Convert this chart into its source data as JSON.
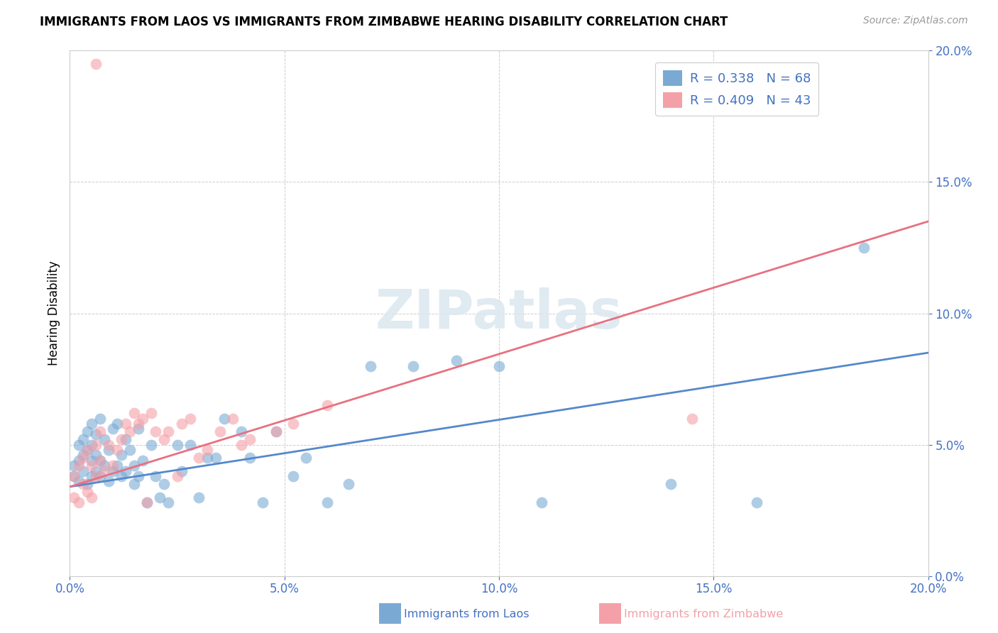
{
  "title": "IMMIGRANTS FROM LAOS VS IMMIGRANTS FROM ZIMBABWE HEARING DISABILITY CORRELATION CHART",
  "source": "Source: ZipAtlas.com",
  "ylabel": "Hearing Disability",
  "x_min": 0.0,
  "x_max": 0.2,
  "y_min": 0.0,
  "y_max": 0.2,
  "laos_color": "#7aaad4",
  "zimbabwe_color": "#f4a0a8",
  "laos_line_color": "#5588cc",
  "zimbabwe_line_color": "#e87080",
  "laos_R": 0.338,
  "laos_N": 68,
  "zimbabwe_R": 0.409,
  "zimbabwe_N": 43,
  "background_color": "#ffffff",
  "tick_color": "#4472C4",
  "laos_line_start_y": 0.034,
  "laos_line_end_y": 0.085,
  "zimbabwe_line_start_y": 0.034,
  "zimbabwe_line_end_y": 0.135,
  "laos_scatter_x": [
    0.001,
    0.001,
    0.002,
    0.002,
    0.002,
    0.003,
    0.003,
    0.003,
    0.004,
    0.004,
    0.004,
    0.005,
    0.005,
    0.005,
    0.005,
    0.006,
    0.006,
    0.006,
    0.007,
    0.007,
    0.007,
    0.008,
    0.008,
    0.009,
    0.009,
    0.01,
    0.01,
    0.011,
    0.011,
    0.012,
    0.012,
    0.013,
    0.013,
    0.014,
    0.015,
    0.015,
    0.016,
    0.016,
    0.017,
    0.018,
    0.019,
    0.02,
    0.021,
    0.022,
    0.023,
    0.025,
    0.026,
    0.028,
    0.03,
    0.032,
    0.034,
    0.036,
    0.04,
    0.042,
    0.045,
    0.048,
    0.052,
    0.055,
    0.06,
    0.065,
    0.07,
    0.08,
    0.09,
    0.1,
    0.11,
    0.14,
    0.16,
    0.185
  ],
  "laos_scatter_y": [
    0.038,
    0.042,
    0.036,
    0.044,
    0.05,
    0.04,
    0.046,
    0.052,
    0.035,
    0.048,
    0.055,
    0.038,
    0.044,
    0.05,
    0.058,
    0.04,
    0.046,
    0.054,
    0.038,
    0.044,
    0.06,
    0.042,
    0.052,
    0.036,
    0.048,
    0.04,
    0.056,
    0.042,
    0.058,
    0.038,
    0.046,
    0.04,
    0.052,
    0.048,
    0.035,
    0.042,
    0.038,
    0.056,
    0.044,
    0.028,
    0.05,
    0.038,
    0.03,
    0.035,
    0.028,
    0.05,
    0.04,
    0.05,
    0.03,
    0.045,
    0.045,
    0.06,
    0.055,
    0.045,
    0.028,
    0.055,
    0.038,
    0.045,
    0.028,
    0.035,
    0.08,
    0.08,
    0.082,
    0.08,
    0.028,
    0.035,
    0.028,
    0.125
  ],
  "zimbabwe_scatter_x": [
    0.001,
    0.001,
    0.002,
    0.002,
    0.003,
    0.003,
    0.004,
    0.004,
    0.005,
    0.005,
    0.006,
    0.006,
    0.007,
    0.007,
    0.008,
    0.009,
    0.01,
    0.011,
    0.012,
    0.013,
    0.014,
    0.015,
    0.016,
    0.017,
    0.018,
    0.019,
    0.02,
    0.022,
    0.023,
    0.025,
    0.026,
    0.028,
    0.03,
    0.032,
    0.035,
    0.038,
    0.04,
    0.042,
    0.048,
    0.052,
    0.06,
    0.145,
    0.006
  ],
  "zimbabwe_scatter_y": [
    0.03,
    0.038,
    0.028,
    0.042,
    0.035,
    0.045,
    0.032,
    0.048,
    0.03,
    0.042,
    0.05,
    0.038,
    0.044,
    0.055,
    0.04,
    0.05,
    0.042,
    0.048,
    0.052,
    0.058,
    0.055,
    0.062,
    0.058,
    0.06,
    0.028,
    0.062,
    0.055,
    0.052,
    0.055,
    0.038,
    0.058,
    0.06,
    0.045,
    0.048,
    0.055,
    0.06,
    0.05,
    0.052,
    0.055,
    0.058,
    0.065,
    0.06,
    0.195
  ]
}
